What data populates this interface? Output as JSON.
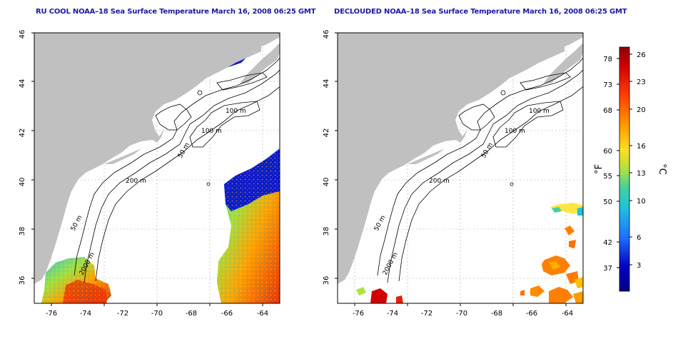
{
  "left_panel": {
    "title": "RU COOL NOAA–18 Sea Surface Temperature March 16, 2008 06:25 GMT",
    "lon_ticks": [
      "-76",
      "-74",
      "-72",
      "-70",
      "-68",
      "-66",
      "-64"
    ],
    "lat_ticks": [
      "46",
      "44",
      "42",
      "40",
      "38",
      "36"
    ],
    "contour_labels": [
      "100 m",
      "100 m",
      "50 m",
      "200 m",
      "50 m",
      "2000 m"
    ]
  },
  "right_panel": {
    "title": "DECLOUDED NOAA–18 Sea Surface Temperature March 16, 2008 06:25 GMT",
    "lon_ticks": [
      "-76",
      "-74",
      "-72",
      "-70",
      "-68",
      "-66",
      "-64"
    ],
    "lat_ticks": [
      "46",
      "44",
      "42",
      "40",
      "38",
      "36"
    ],
    "contour_labels": [
      "100 m",
      "100 m",
      "50 m",
      "200 m",
      "50 m",
      "2000 m"
    ]
  },
  "colorbar": {
    "fahrenheit_label": "°F",
    "celsius_label": "°C",
    "fahrenheit_ticks": [
      "78",
      "73",
      "68",
      "60",
      "55",
      "50",
      "42",
      "37"
    ],
    "celsius_ticks": [
      "26",
      "23",
      "20",
      "16",
      "13",
      "10",
      "6",
      "3"
    ],
    "colors": [
      "#8b0000",
      "#d40000",
      "#ff4000",
      "#ff9a00",
      "#ffe020",
      "#b0e040",
      "#40d0a0",
      "#20c0e0",
      "#2070ff",
      "#0000c0",
      "#000080"
    ]
  },
  "map_colors": {
    "land": "#c0c0c0",
    "ocean": "#ffffff",
    "cloud_mask": "#1020c0",
    "contour": "#000000",
    "grid": "#b0b0b0"
  }
}
